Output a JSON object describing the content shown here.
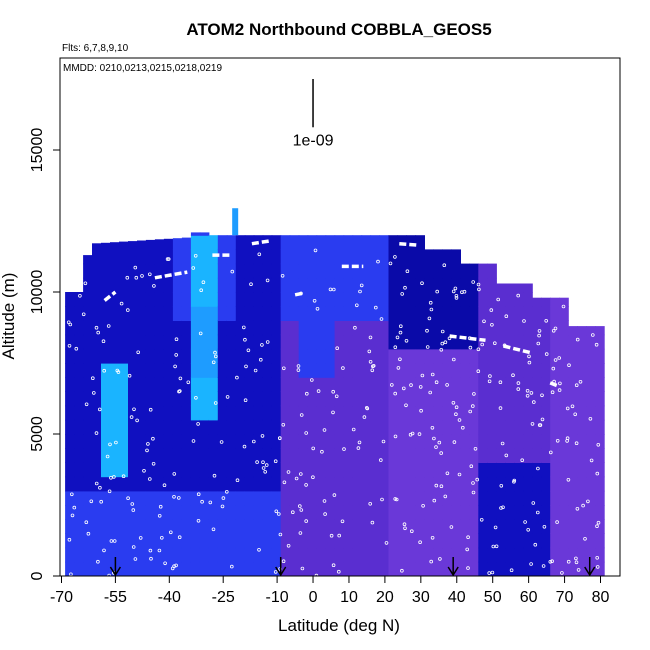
{
  "chart_data": {
    "type": "heatmap",
    "title": "ATOM2 Northbound COBBLA_GEOS5",
    "flights_label": "Flts: 6,7,8,9,10",
    "dates_label": "MMDD: 0210,0213,0215,0218,0219",
    "xlabel": "Latitude (deg N)",
    "ylabel": "Altitude (m)",
    "x_ticks": [
      -70,
      -55,
      -40,
      -25,
      -10,
      0,
      10,
      20,
      30,
      40,
      50,
      60,
      70,
      80
    ],
    "y_ticks": [
      0,
      5000,
      10000,
      15000
    ],
    "xlim": [
      -70,
      85
    ],
    "ylim": [
      0,
      18000
    ],
    "scale_bar": {
      "label": "1e-09",
      "lat": 0,
      "alt_top": 17500,
      "alt_bottom": 15800
    },
    "profile_arrows_lat": [
      -55,
      -9,
      39,
      77
    ],
    "colors": {
      "deep_blue": "#1010c0",
      "blue": "#2a3cf0",
      "light_blue": "#1e9cff",
      "cyan": "#1ab4ff",
      "purple": "#5a2ed0",
      "violet": "#6a38d8",
      "navy": "#0a0aa8"
    }
  }
}
